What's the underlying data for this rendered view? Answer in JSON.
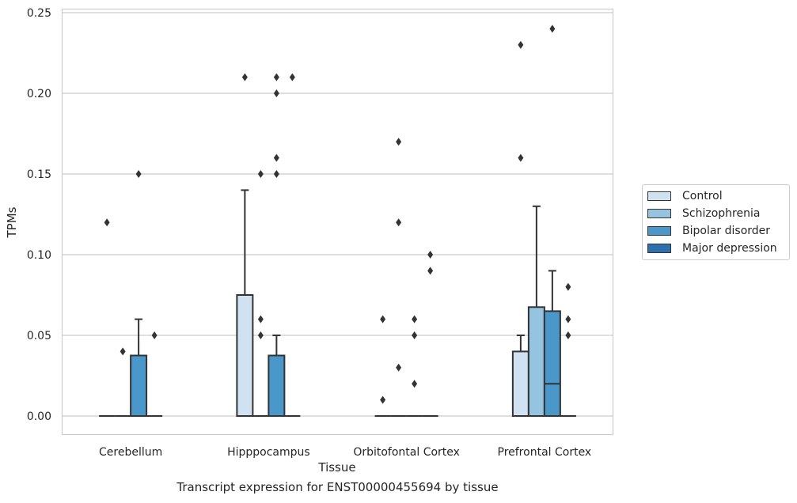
{
  "chart_data": {
    "type": "box",
    "xlabel": "Tissue",
    "ylabel": "TPMs",
    "caption": "Transcript expression for ENST00000455694 by tissue",
    "ylim": [
      -0.012,
      0.252
    ],
    "yticks": [
      0.0,
      0.05,
      0.1,
      0.15,
      0.2,
      0.25
    ],
    "ytick_labels": [
      "0.00",
      "0.05",
      "0.10",
      "0.15",
      "0.20",
      "0.25"
    ],
    "grid": "horizontal",
    "legend_position": "right",
    "categories": [
      "Cerebellum",
      "Hipppocampus",
      "Orbitofontal Cortex",
      "Prefrontal Cortex"
    ],
    "series": [
      {
        "name": "Control",
        "color": "#d0e1f2",
        "boxes": [
          {
            "q1": 0.0,
            "median": 0.0,
            "q3": 0.0,
            "whisker_low": 0.0,
            "whisker_high": 0.0,
            "outliers": [
              0.12
            ]
          },
          {
            "q1": 0.0,
            "median": 0.0,
            "q3": 0.075,
            "whisker_low": 0.0,
            "whisker_high": 0.14,
            "outliers": [
              0.21
            ]
          },
          {
            "q1": 0.0,
            "median": 0.0,
            "q3": 0.0,
            "whisker_low": 0.0,
            "whisker_high": 0.0,
            "outliers": [
              0.06,
              0.01
            ]
          },
          {
            "q1": 0.0,
            "median": 0.0,
            "q3": 0.04,
            "whisker_low": 0.0,
            "whisker_high": 0.05,
            "outliers": [
              0.23,
              0.16
            ]
          }
        ]
      },
      {
        "name": "Schizophrenia",
        "color": "#94c4df",
        "boxes": [
          {
            "q1": 0.0,
            "median": 0.0,
            "q3": 0.0,
            "whisker_low": 0.0,
            "whisker_high": 0.0,
            "outliers": [
              0.04
            ]
          },
          {
            "q1": 0.0,
            "median": 0.0,
            "q3": 0.0,
            "whisker_low": 0.0,
            "whisker_high": 0.0,
            "outliers": [
              0.15,
              0.06,
              0.05
            ]
          },
          {
            "q1": 0.0,
            "median": 0.0,
            "q3": 0.0,
            "whisker_low": 0.0,
            "whisker_high": 0.0,
            "outliers": [
              0.17,
              0.12,
              0.03
            ]
          },
          {
            "q1": 0.0,
            "median": 0.0,
            "q3": 0.0675,
            "whisker_low": 0.0,
            "whisker_high": 0.13,
            "outliers": []
          }
        ]
      },
      {
        "name": "Bipolar disorder",
        "color": "#4a98c9",
        "boxes": [
          {
            "q1": 0.0,
            "median": 0.0,
            "q3": 0.0375,
            "whisker_low": 0.0,
            "whisker_high": 0.06,
            "outliers": [
              0.15
            ]
          },
          {
            "q1": 0.0,
            "median": 0.0,
            "q3": 0.0375,
            "whisker_low": 0.0,
            "whisker_high": 0.05,
            "outliers": [
              0.21,
              0.2,
              0.16,
              0.15
            ]
          },
          {
            "q1": 0.0,
            "median": 0.0,
            "q3": 0.0,
            "whisker_low": 0.0,
            "whisker_high": 0.0,
            "outliers": [
              0.06,
              0.05,
              0.02
            ]
          },
          {
            "q1": 0.0,
            "median": 0.02,
            "q3": 0.065,
            "whisker_low": 0.0,
            "whisker_high": 0.09,
            "outliers": [
              0.24
            ]
          }
        ]
      },
      {
        "name": "Major depression",
        "color": "#2e6fad",
        "boxes": [
          {
            "q1": 0.0,
            "median": 0.0,
            "q3": 0.0,
            "whisker_low": 0.0,
            "whisker_high": 0.0,
            "outliers": [
              0.05
            ]
          },
          {
            "q1": 0.0,
            "median": 0.0,
            "q3": 0.0,
            "whisker_low": 0.0,
            "whisker_high": 0.0,
            "outliers": [
              0.21
            ]
          },
          {
            "q1": 0.0,
            "median": 0.0,
            "q3": 0.0,
            "whisker_low": 0.0,
            "whisker_high": 0.0,
            "outliers": [
              0.1,
              0.09
            ]
          },
          {
            "q1": 0.0,
            "median": 0.0,
            "q3": 0.0,
            "whisker_low": 0.0,
            "whisker_high": 0.0,
            "outliers": [
              0.08,
              0.06,
              0.05
            ]
          }
        ]
      }
    ]
  }
}
